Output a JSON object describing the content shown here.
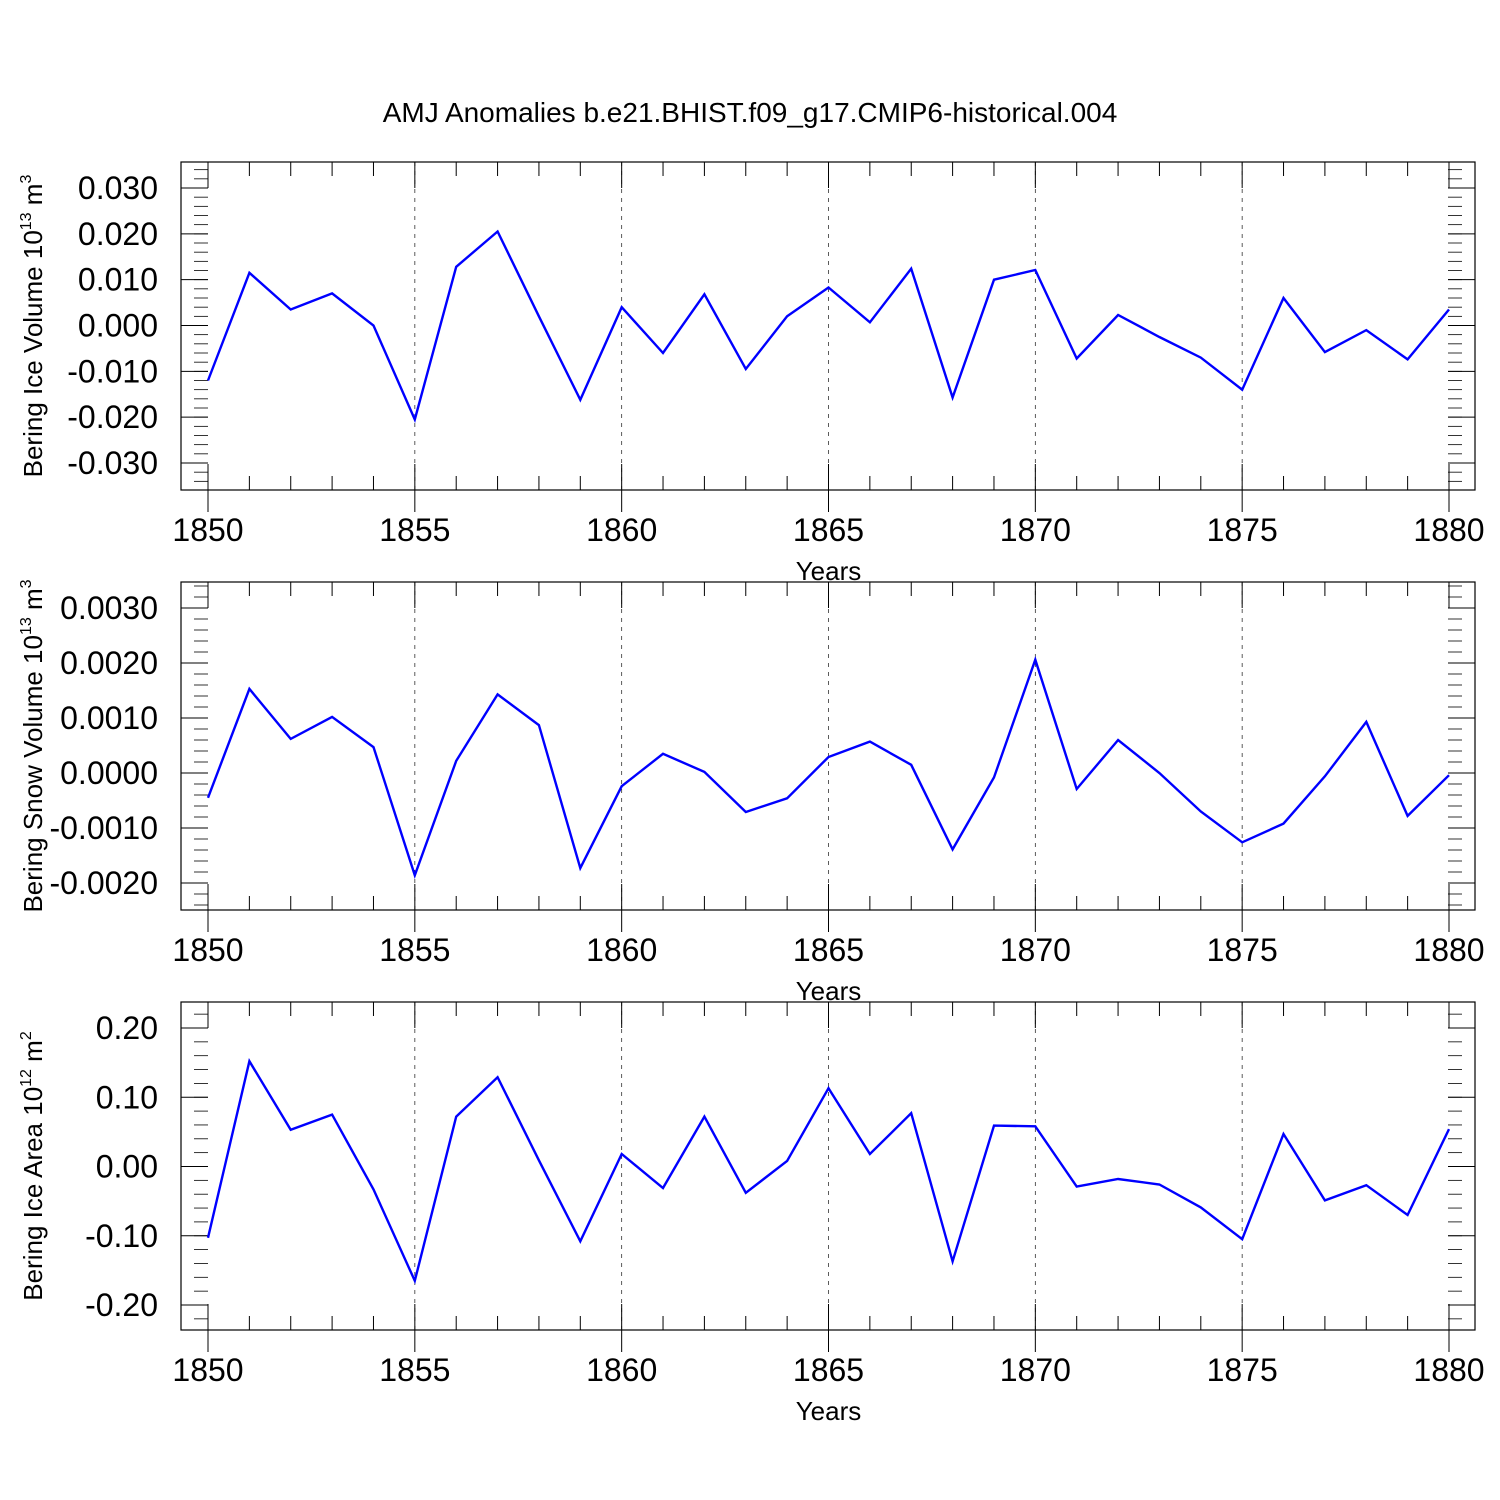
{
  "figure_title": "AMJ Anomalies b.e21.BHIST.f09_g17.CMIP6-historical.004",
  "colors": {
    "line": "#0000ff",
    "axis": "#000000",
    "grid": "#000000"
  },
  "chart_data": [
    {
      "type": "line",
      "ylabel": {
        "text": "Bering Ice Volume 10",
        "exponent": "13",
        "unit": " m",
        "unit_exponent": "3"
      },
      "xlabel": "Years",
      "xlim": [
        1850,
        1880
      ],
      "ylim": [
        -0.03,
        0.03
      ],
      "x_ticks": [
        "1850",
        "1855",
        "1860",
        "1865",
        "1870",
        "1875",
        "1880"
      ],
      "y_ticks": [
        "0.030",
        "0.020",
        "0.010",
        "0.000",
        "-0.010",
        "-0.020",
        "-0.030"
      ],
      "grid": "vertical dashed at major x ticks",
      "series": [
        {
          "x": [
            1850,
            1851,
            1852,
            1853,
            1854,
            1855,
            1856,
            1857,
            1858,
            1859,
            1860,
            1861,
            1862,
            1863,
            1864,
            1865,
            1866,
            1867,
            1868,
            1869,
            1870,
            1871,
            1872,
            1873,
            1874,
            1875,
            1876,
            1877,
            1878,
            1879,
            1880
          ],
          "values": [
            -0.012,
            0.0115,
            0.0035,
            0.007,
            0.0,
            -0.0205,
            0.0128,
            0.0205,
            0.002,
            -0.0162,
            0.004,
            -0.006,
            0.0068,
            -0.0095,
            0.002,
            0.0083,
            0.0007,
            0.0124,
            -0.0157,
            0.01,
            0.0121,
            -0.0072,
            0.0023,
            -0.0025,
            -0.007,
            -0.014,
            0.006,
            -0.0058,
            -0.001,
            -0.0074,
            0.0035
          ]
        }
      ]
    },
    {
      "type": "line",
      "ylabel": {
        "text": "Bering Snow Volume 10",
        "exponent": "13",
        "unit": " m",
        "unit_exponent": "3"
      },
      "xlabel": "Years",
      "xlim": [
        1850,
        1880
      ],
      "ylim": [
        -0.0022,
        0.003
      ],
      "x_ticks": [
        "1850",
        "1855",
        "1860",
        "1865",
        "1870",
        "1875",
        "1880"
      ],
      "y_ticks": [
        "0.0030",
        "0.0020",
        "0.0010",
        "0.0000",
        "-0.0010",
        "-0.0020"
      ],
      "grid": "vertical dashed at major x ticks",
      "series": [
        {
          "x": [
            1850,
            1851,
            1852,
            1853,
            1854,
            1855,
            1856,
            1857,
            1858,
            1859,
            1860,
            1861,
            1862,
            1863,
            1864,
            1865,
            1866,
            1867,
            1868,
            1869,
            1870,
            1871,
            1872,
            1873,
            1874,
            1875,
            1876,
            1877,
            1878,
            1879,
            1880
          ],
          "values": [
            -0.00045,
            0.00153,
            0.00062,
            0.00102,
            0.00047,
            -0.00186,
            0.00022,
            0.00143,
            0.00087,
            -0.00173,
            -0.00024,
            0.00035,
            2e-05,
            -0.00071,
            -0.00046,
            0.00029,
            0.00057,
            0.00015,
            -0.00139,
            -8e-05,
            0.00206,
            -0.00029,
            0.0006,
            0.0,
            -0.0007,
            -0.00126,
            -0.00092,
            -6e-05,
            0.00093,
            -0.00078,
            -4e-05
          ]
        }
      ]
    },
    {
      "type": "line",
      "ylabel": {
        "text": "Bering Ice Area 10",
        "exponent": "12",
        "unit": " m",
        "unit_exponent": "2"
      },
      "xlabel": "Years",
      "xlim": [
        1850,
        1880
      ],
      "ylim": [
        -0.2,
        0.2
      ],
      "x_ticks": [
        "1850",
        "1855",
        "1860",
        "1865",
        "1870",
        "1875",
        "1880"
      ],
      "y_ticks": [
        "0.20",
        "0.10",
        "0.00",
        "-0.10",
        "-0.20"
      ],
      "grid": "vertical dashed at major x ticks",
      "series": [
        {
          "x": [
            1850,
            1851,
            1852,
            1853,
            1854,
            1855,
            1856,
            1857,
            1858,
            1859,
            1860,
            1861,
            1862,
            1863,
            1864,
            1865,
            1866,
            1867,
            1868,
            1869,
            1870,
            1871,
            1872,
            1873,
            1874,
            1875,
            1876,
            1877,
            1878,
            1879,
            1880
          ],
          "values": [
            -0.103,
            0.152,
            0.053,
            0.075,
            -0.033,
            -0.165,
            0.072,
            0.129,
            0.009,
            -0.108,
            0.018,
            -0.031,
            0.072,
            -0.038,
            0.008,
            0.113,
            0.018,
            0.077,
            -0.137,
            0.059,
            0.058,
            -0.029,
            -0.018,
            -0.026,
            -0.059,
            -0.105,
            0.047,
            -0.049,
            -0.027,
            -0.07,
            0.054
          ]
        }
      ]
    }
  ]
}
